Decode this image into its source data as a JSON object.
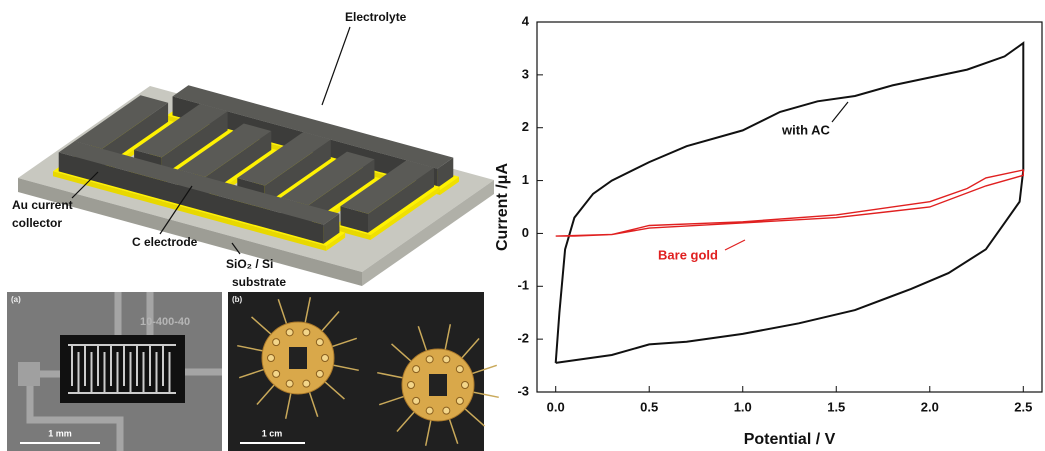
{
  "schematic": {
    "electrolyte": "Electrolyte",
    "collector": [
      "Au current",
      "collector"
    ],
    "electrode": "C electrode",
    "substrate": [
      "SiO₂ / Si",
      "substrate"
    ]
  },
  "photo_a": {
    "panel": "(a)",
    "sample": "10-400-40",
    "scale": "1 mm"
  },
  "photo_b": {
    "panel": "(b)",
    "scale": "1 cm"
  },
  "chart_data": {
    "type": "line",
    "x_label": "Potential / V",
    "y_label": "Current /μA",
    "xlim": [
      -0.1,
      2.6
    ],
    "ylim": [
      -3,
      4
    ],
    "xticks": [
      {
        "value": 0,
        "label": "0.0"
      },
      0.5,
      {
        "value": 1,
        "label": "1.0"
      },
      1.5,
      {
        "value": 2,
        "label": "2.0"
      },
      2.5
    ],
    "yticks": [
      -3,
      -2,
      -1,
      0,
      1,
      2,
      3,
      4
    ],
    "annotations": [
      "with AC",
      "Bare gold"
    ],
    "series": [
      {
        "name": "with AC",
        "color": "#111111",
        "x": [
          0,
          0.02,
          0.05,
          0.1,
          0.2,
          0.3,
          0.5,
          0.7,
          1.0,
          1.2,
          1.4,
          1.6,
          1.8,
          2.0,
          2.2,
          2.4,
          2.5,
          2.5,
          2.48,
          2.4,
          2.3,
          2.1,
          1.9,
          1.6,
          1.3,
          1.0,
          0.7,
          0.5,
          0.3,
          0.1,
          0
        ],
        "values": [
          -2.45,
          -1.5,
          -0.3,
          0.3,
          0.75,
          1.0,
          1.35,
          1.65,
          1.95,
          2.3,
          2.5,
          2.6,
          2.8,
          2.95,
          3.1,
          3.35,
          3.6,
          1.2,
          0.6,
          0.2,
          -0.3,
          -0.75,
          -1.05,
          -1.45,
          -1.7,
          -1.9,
          -2.05,
          -2.1,
          -2.3,
          -2.4,
          -2.45
        ]
      },
      {
        "name": "Bare gold",
        "color": "#e02020",
        "x": [
          0,
          0.3,
          0.5,
          1.0,
          1.5,
          2.0,
          2.2,
          2.3,
          2.5,
          2.5,
          2.3,
          2.0,
          1.5,
          1.0,
          0.5,
          0.3,
          0.1,
          0
        ],
        "values": [
          -0.05,
          -0.02,
          0.15,
          0.22,
          0.35,
          0.6,
          0.85,
          1.05,
          1.2,
          1.1,
          0.9,
          0.5,
          0.3,
          0.2,
          0.1,
          -0.02,
          -0.05,
          -0.05
        ]
      }
    ]
  }
}
